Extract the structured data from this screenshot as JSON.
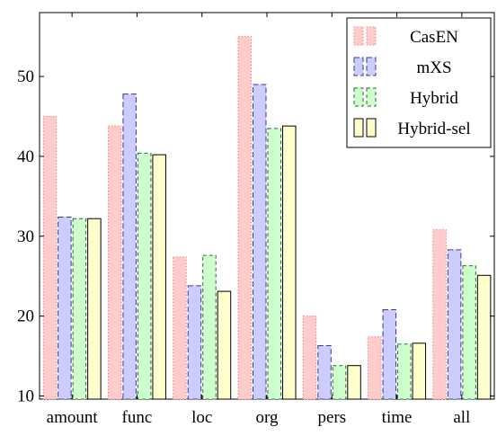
{
  "chart_data": {
    "type": "bar",
    "title": "",
    "xlabel": "",
    "ylabel": "",
    "categories": [
      "amount",
      "func",
      "loc",
      "org",
      "pers",
      "time",
      "all"
    ],
    "ylim": [
      9.6,
      58
    ],
    "yticks": [
      10,
      20,
      30,
      40,
      50
    ],
    "grid": false,
    "legend_position": "top-right",
    "series": [
      {
        "name": "CasEN",
        "values": [
          45.0,
          43.8,
          27.4,
          55.0,
          20.0,
          17.4,
          30.8
        ],
        "fill": "#ffcccc",
        "stroke": "#ef7f7f",
        "dash": "1.5,2"
      },
      {
        "name": "mXS",
        "values": [
          32.4,
          47.8,
          23.8,
          49.0,
          16.3,
          20.8,
          28.3
        ],
        "fill": "#ccccff",
        "stroke": "#3b3b8f",
        "dash": "6,3"
      },
      {
        "name": "Hybrid",
        "values": [
          32.2,
          40.4,
          27.6,
          43.5,
          13.8,
          16.5,
          26.3
        ],
        "fill": "#ccffcc",
        "stroke": "#2b6b2b",
        "dash": "4,3"
      },
      {
        "name": "Hybrid-sel",
        "values": [
          32.2,
          40.2,
          23.1,
          43.8,
          13.8,
          16.6,
          25.1
        ],
        "fill": "#ffffcc",
        "stroke": "#000000",
        "dash": ""
      }
    ]
  }
}
